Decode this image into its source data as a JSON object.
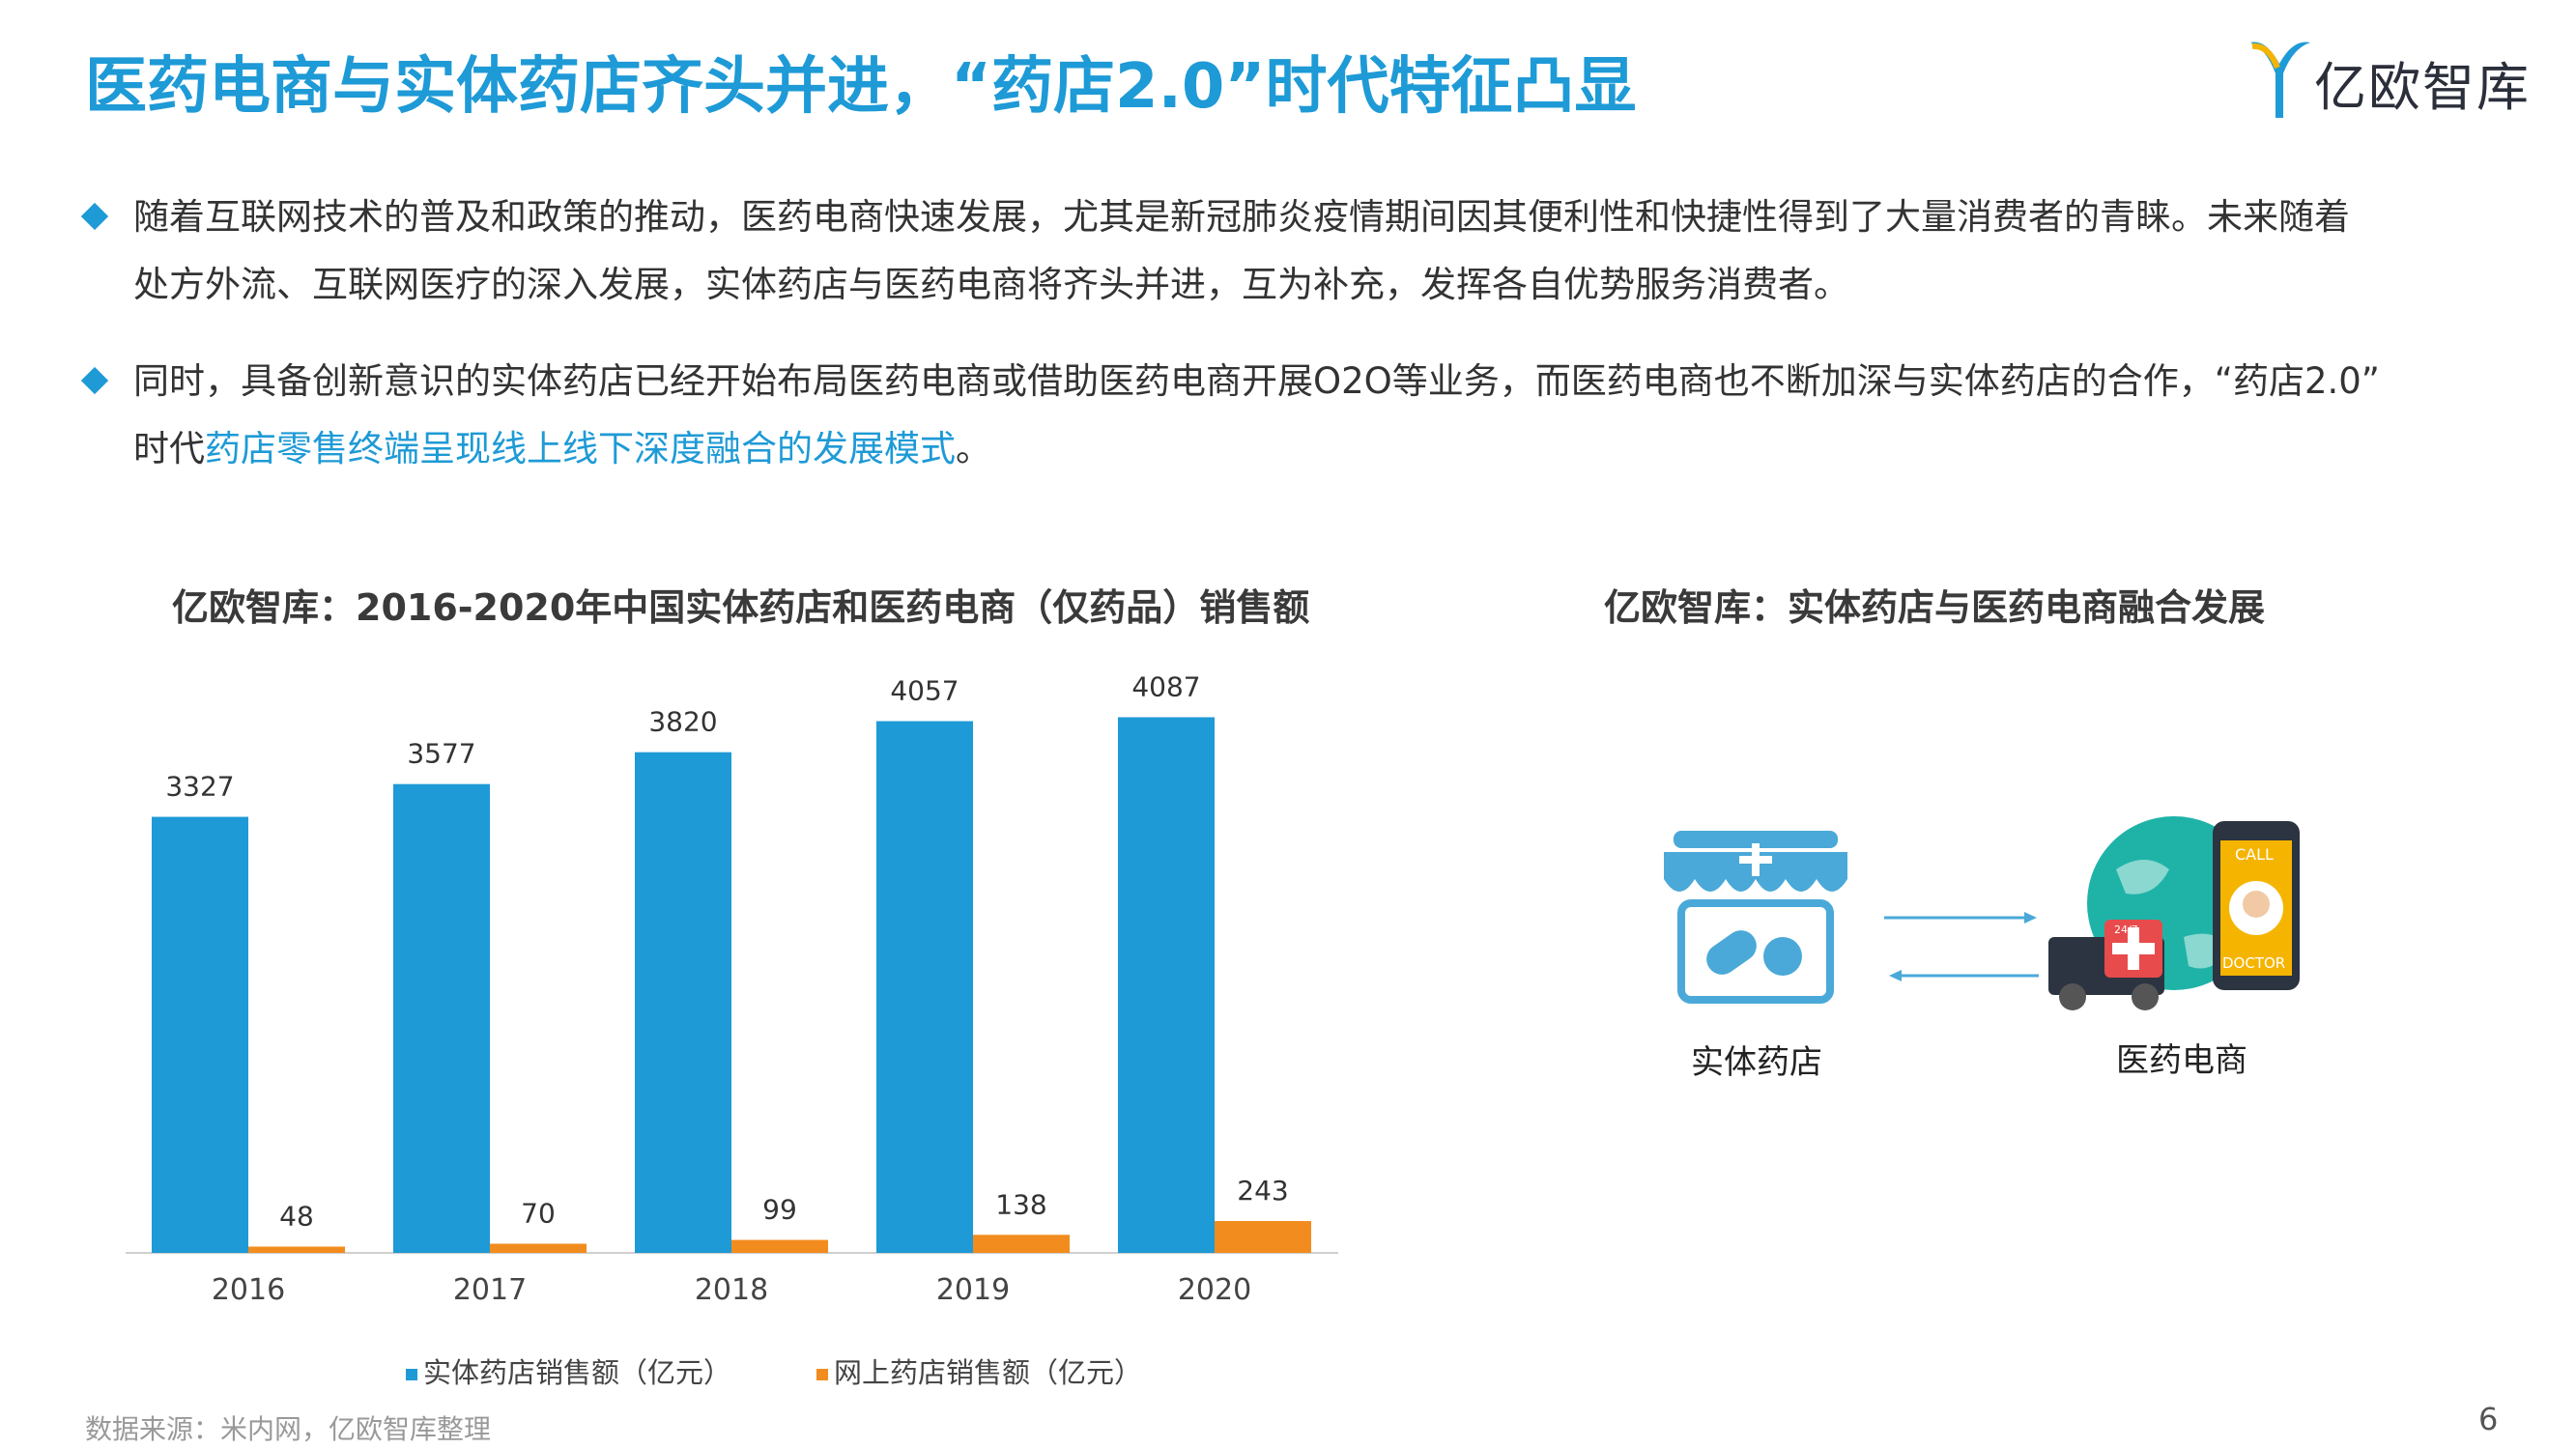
{
  "header": {
    "title": "医药电商与实体药店齐头并进，“药店2.0”时代特征凸显",
    "logo_text": "亿欧智库"
  },
  "bullets": [
    {
      "text_line1": "随着互联网技术的普及和政策的推动，医药电商快速发展，尤其是新冠肺炎疫情期间因其便利性和快捷性得到了大量消费者的青睐。未来随着",
      "text_line2": "处方外流、互联网医疗的深入发展，实体药店与医药电商将齐头并进，互为补充，发挥各自优势服务消费者。"
    },
    {
      "text_line1": "同时，具备创新意识的实体药店已经开始布局医药电商或借助医药电商开展O2O等业务，而医药电商也不断加深与实体药店的合作，“药店2.0”",
      "text_line2_prefix": "时代",
      "text_line2_highlight": "药店零售终端呈现线上线下深度融合的发展模式",
      "text_line2_suffix": "。"
    }
  ],
  "chart_section": {
    "subtitle": "亿欧智库：2016-2020年中国实体药店和医药电商（仅药品）销售额"
  },
  "diagram_section": {
    "subtitle": "亿欧智库：实体药店与医药电商融合发展",
    "left_label": "实体药店",
    "right_label": "医药电商",
    "badge_call": "CALL",
    "badge_doctor": "DOCTOR",
    "badge_247": "24/7"
  },
  "chart_data": {
    "type": "bar",
    "categories": [
      "2016",
      "2017",
      "2018",
      "2019",
      "2020"
    ],
    "series": [
      {
        "name": "实体药店销售额（亿元）",
        "values": [
          3327,
          3577,
          3820,
          4057,
          4087
        ],
        "color": "#1e9ad6"
      },
      {
        "name": "网上药店销售额（亿元）",
        "values": [
          48,
          70,
          99,
          138,
          243
        ],
        "color": "#f28c1e"
      }
    ],
    "ylim": [
      0,
      4400
    ],
    "grid": false,
    "legend": "bottom"
  },
  "footer": {
    "source": "数据来源：米内网，亿欧智库整理",
    "page": "6"
  }
}
